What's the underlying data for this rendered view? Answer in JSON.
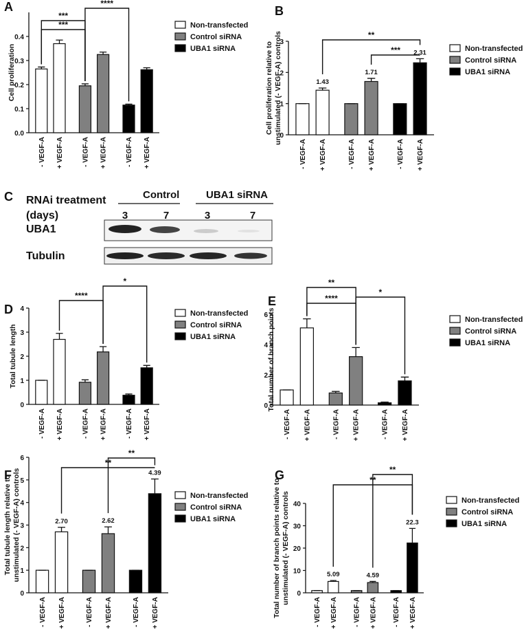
{
  "chart_data": [
    {
      "type": "bar",
      "panel": "A",
      "y_label": [
        "Cell proliferation"
      ],
      "categories": [
        "- VEGF-A",
        "+ VEGF-A"
      ],
      "series": [
        {
          "name": "Non-transfected",
          "color": "#ffffff",
          "values": [
            0.265,
            0.37
          ],
          "errors": [
            0.008,
            0.015
          ]
        },
        {
          "name": "Control siRNA",
          "color": "#808080",
          "values": [
            0.195,
            0.325
          ],
          "errors": [
            0.008,
            0.01
          ]
        },
        {
          "name": "UBA1 siRNA",
          "color": "#000000",
          "values": [
            0.115,
            0.262
          ],
          "errors": [
            0.004,
            0.008
          ]
        }
      ],
      "ylim": [
        0,
        0.5
      ],
      "yticks": [
        {
          "value": 0,
          "label": "0.0"
        },
        0.1,
        0.2,
        0.3,
        0.4
      ],
      "significance": [
        "****",
        "***",
        "***"
      ]
    },
    {
      "type": "bar",
      "panel": "B",
      "y_label": [
        "Cell proliferation relative to",
        "unstimulated (- VEGF-A) controls"
      ],
      "categories": [
        "- VEGF-A",
        "+ VEGF-A"
      ],
      "series": [
        {
          "name": "Non-transfected",
          "color": "#ffffff",
          "values": [
            1,
            1.43
          ],
          "errors": [
            0,
            0.07
          ],
          "value_labels": [
            null,
            "1.43"
          ]
        },
        {
          "name": "Control siRNA",
          "color": "#808080",
          "values": [
            1,
            1.71
          ],
          "errors": [
            0,
            0.1
          ],
          "value_labels": [
            null,
            "1.71"
          ]
        },
        {
          "name": "UBA1 siRNA",
          "color": "#000000",
          "values": [
            1,
            2.31
          ],
          "errors": [
            0,
            0.13
          ],
          "value_labels": [
            null,
            "2.31"
          ]
        }
      ],
      "ylim": [
        0,
        3
      ],
      "yticks": [
        0,
        1,
        2,
        3
      ],
      "significance": [
        "**",
        "***"
      ]
    },
    {
      "type": "bar",
      "panel": "D",
      "y_label": [
        "Total tubule length"
      ],
      "categories": [
        "- VEGF-A",
        "+ VEGF-A"
      ],
      "series": [
        {
          "name": "Non-transfected",
          "color": "#ffffff",
          "values": [
            1,
            2.7
          ],
          "errors": [
            0,
            0.25
          ]
        },
        {
          "name": "Control siRNA",
          "color": "#808080",
          "values": [
            0.92,
            2.18
          ],
          "errors": [
            0.1,
            0.22
          ]
        },
        {
          "name": "UBA1 siRNA",
          "color": "#000000",
          "values": [
            0.38,
            1.52
          ],
          "errors": [
            0.05,
            0.1
          ]
        }
      ],
      "ylim": [
        0,
        4
      ],
      "yticks": [
        0,
        1,
        2,
        3,
        4
      ],
      "significance": [
        "****",
        "*"
      ]
    },
    {
      "type": "bar",
      "panel": "E",
      "y_label": [
        "Total number of branch points"
      ],
      "categories": [
        "- VEGF-A",
        "+ VEGF-A"
      ],
      "series": [
        {
          "name": "Non-transfected",
          "color": "#ffffff",
          "values": [
            1,
            5.1
          ],
          "errors": [
            0,
            0.6
          ]
        },
        {
          "name": "Control siRNA",
          "color": "#808080",
          "values": [
            0.8,
            3.2
          ],
          "errors": [
            0.1,
            0.6
          ]
        },
        {
          "name": "UBA1 siRNA",
          "color": "#000000",
          "values": [
            0.15,
            1.6
          ],
          "errors": [
            0.05,
            0.25
          ]
        }
      ],
      "ylim": [
        0,
        6
      ],
      "yticks": [
        0,
        2,
        4,
        6
      ],
      "significance": [
        "**",
        "****",
        "*"
      ]
    },
    {
      "type": "bar",
      "panel": "F",
      "y_label": [
        "Total tubule length relative to",
        "unstimulated (- VEGF-A) controls"
      ],
      "categories": [
        "- VEGF-A",
        "+ VEGF-A"
      ],
      "series": [
        {
          "name": "Non-transfected",
          "color": "#ffffff",
          "values": [
            1,
            2.7
          ],
          "errors": [
            0,
            0.2
          ],
          "value_labels": [
            null,
            "2.70"
          ]
        },
        {
          "name": "Control siRNA",
          "color": "#808080",
          "values": [
            1,
            2.62
          ],
          "errors": [
            0,
            0.3
          ],
          "value_labels": [
            null,
            "2.62"
          ]
        },
        {
          "name": "UBA1 siRNA",
          "color": "#000000",
          "values": [
            1,
            4.39
          ],
          "errors": [
            0,
            0.65
          ],
          "value_labels": [
            null,
            "4.39"
          ]
        }
      ],
      "ylim": [
        0,
        6
      ],
      "yticks": [
        0,
        1,
        2,
        3,
        4,
        5,
        6
      ],
      "significance": [
        "**",
        "**"
      ]
    },
    {
      "type": "bar",
      "panel": "G",
      "y_label": [
        "Total number of branch points relative to",
        "unstimulated (- VEGF-A) controls"
      ],
      "categories": [
        "- VEGF-A",
        "+ VEGF-A"
      ],
      "series": [
        {
          "name": "Non-transfected",
          "color": "#ffffff",
          "values": [
            1,
            5.09
          ],
          "errors": [
            0,
            0.4
          ],
          "value_labels": [
            null,
            "5.09"
          ]
        },
        {
          "name": "Control siRNA",
          "color": "#808080",
          "values": [
            1,
            4.59
          ],
          "errors": [
            0,
            0.5
          ],
          "value_labels": [
            null,
            "4.59"
          ]
        },
        {
          "name": "UBA1 siRNA",
          "color": "#000000",
          "values": [
            1,
            22.3
          ],
          "errors": [
            0,
            6.5
          ],
          "value_labels": [
            null,
            "22.3"
          ]
        }
      ],
      "ylim": [
        0,
        40
      ],
      "yticks": [
        0,
        10,
        20,
        30,
        40
      ],
      "significance": [
        "**",
        "**"
      ]
    }
  ],
  "blot": {
    "panel": "C",
    "row_header": [
      "RNAi treatment",
      "(days)"
    ],
    "groups": [
      "Control",
      "UBA1 siRNA"
    ],
    "days": [
      "3",
      "7",
      "3",
      "7"
    ],
    "rows": [
      "UBA1",
      "Tubulin"
    ]
  }
}
